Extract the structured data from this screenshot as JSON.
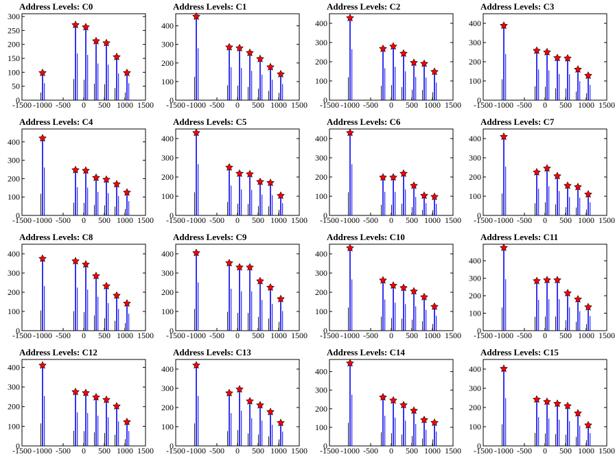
{
  "chart_data": [
    {
      "type": "bar",
      "title": "Address Levels: C0",
      "xlim": [
        -1500,
        1500
      ],
      "ylim": [
        0,
        310
      ],
      "yticks": [
        0,
        50,
        100,
        150,
        200,
        250,
        300
      ],
      "xticks": [
        -1500,
        -1000,
        -500,
        0,
        500,
        1000,
        1500
      ],
      "x": [
        -1000,
        -200,
        50,
        300,
        550,
        800,
        1050
      ],
      "values": [
        98,
        270,
        262,
        212,
        205,
        155,
        98
      ]
    },
    {
      "type": "bar",
      "title": "Address Levels: C1",
      "xlim": [
        -1500,
        1500
      ],
      "ylim": [
        0,
        465
      ],
      "yticks": [
        0,
        100,
        200,
        300,
        400
      ],
      "xticks": [
        -1500,
        -1000,
        -500,
        0,
        500,
        1000,
        1500
      ],
      "x": [
        -1000,
        -200,
        50,
        300,
        550,
        800,
        1050
      ],
      "values": [
        450,
        285,
        280,
        255,
        222,
        178,
        140
      ]
    },
    {
      "type": "bar",
      "title": "Address Levels: C2",
      "xlim": [
        -1500,
        1500
      ],
      "ylim": [
        0,
        450
      ],
      "yticks": [
        0,
        100,
        200,
        300,
        400
      ],
      "xticks": [
        -1500,
        -1000,
        -500,
        0,
        500,
        1000,
        1500
      ],
      "x": [
        -1000,
        -200,
        50,
        300,
        550,
        800,
        1050
      ],
      "values": [
        428,
        268,
        280,
        243,
        195,
        190,
        148
      ]
    },
    {
      "type": "bar",
      "title": "Address Levels: C3",
      "xlim": [
        -1500,
        1500
      ],
      "ylim": [
        0,
        450
      ],
      "yticks": [
        0,
        100,
        200,
        300,
        400
      ],
      "xticks": [
        -1500,
        -1000,
        -500,
        0,
        500,
        1000,
        1500
      ],
      "x": [
        -1000,
        -200,
        50,
        300,
        550,
        800,
        1050
      ],
      "values": [
        388,
        258,
        250,
        220,
        218,
        160,
        128
      ]
    },
    {
      "type": "bar",
      "title": "Address Levels: C4",
      "xlim": [
        -1500,
        1500
      ],
      "ylim": [
        0,
        470
      ],
      "yticks": [
        0,
        100,
        200,
        300,
        400
      ],
      "xticks": [
        -1500,
        -1000,
        -500,
        0,
        500,
        1000,
        1500
      ],
      "x": [
        -1000,
        -200,
        50,
        300,
        550,
        800,
        1050
      ],
      "values": [
        420,
        247,
        244,
        205,
        195,
        170,
        125
      ]
    },
    {
      "type": "bar",
      "title": "Address Levels: C5",
      "xlim": [
        -1500,
        1500
      ],
      "ylim": [
        0,
        450
      ],
      "yticks": [
        0,
        100,
        200,
        300,
        400
      ],
      "xticks": [
        -1500,
        -1000,
        -500,
        0,
        500,
        1000,
        1500
      ],
      "x": [
        -1000,
        -200,
        50,
        300,
        550,
        800,
        1050
      ],
      "values": [
        430,
        250,
        218,
        215,
        175,
        170,
        103
      ]
    },
    {
      "type": "bar",
      "title": "Address Levels: C6",
      "xlim": [
        -1500,
        1500
      ],
      "ylim": [
        0,
        450
      ],
      "yticks": [
        0,
        100,
        200,
        300,
        400
      ],
      "xticks": [
        -1500,
        -1000,
        -500,
        0,
        500,
        1000,
        1500
      ],
      "x": [
        -1000,
        -200,
        50,
        300,
        550,
        800,
        1050
      ],
      "values": [
        430,
        198,
        198,
        218,
        155,
        103,
        97
      ]
    },
    {
      "type": "bar",
      "title": "Address Levels: C7",
      "xlim": [
        -1500,
        1500
      ],
      "ylim": [
        0,
        450
      ],
      "yticks": [
        0,
        100,
        200,
        300,
        400
      ],
      "xticks": [
        -1500,
        -1000,
        -500,
        0,
        500,
        1000,
        1500
      ],
      "x": [
        -1000,
        -200,
        50,
        300,
        550,
        800,
        1050
      ],
      "values": [
        410,
        225,
        245,
        205,
        155,
        148,
        110
      ]
    },
    {
      "type": "bar",
      "title": "Address Levels: C8",
      "xlim": [
        -1500,
        1500
      ],
      "ylim": [
        0,
        450
      ],
      "yticks": [
        0,
        100,
        200,
        300,
        400
      ],
      "xticks": [
        -1500,
        -1000,
        -500,
        0,
        500,
        1000,
        1500
      ],
      "x": [
        -1000,
        -200,
        50,
        300,
        550,
        800,
        1050
      ],
      "values": [
        375,
        362,
        345,
        285,
        232,
        183,
        142
      ]
    },
    {
      "type": "bar",
      "title": "Address Levels: C9",
      "xlim": [
        -1500,
        1500
      ],
      "ylim": [
        0,
        450
      ],
      "yticks": [
        0,
        100,
        200,
        300,
        400
      ],
      "xticks": [
        -1500,
        -1000,
        -500,
        0,
        500,
        1000,
        1500
      ],
      "x": [
        -1000,
        -200,
        50,
        300,
        550,
        800,
        1050
      ],
      "values": [
        405,
        352,
        330,
        330,
        258,
        225,
        165
      ]
    },
    {
      "type": "bar",
      "title": "Address Levels: C10",
      "xlim": [
        -1500,
        1500
      ],
      "ylim": [
        0,
        450
      ],
      "yticks": [
        0,
        100,
        200,
        300,
        400
      ],
      "xticks": [
        -1500,
        -1000,
        -500,
        0,
        500,
        1000,
        1500
      ],
      "x": [
        -1000,
        -200,
        50,
        300,
        550,
        800,
        1050
      ],
      "values": [
        430,
        262,
        235,
        223,
        205,
        175,
        125
      ]
    },
    {
      "type": "bar",
      "title": "Address Levels: C11",
      "xlim": [
        -1500,
        1500
      ],
      "ylim": [
        0,
        495
      ],
      "yticks": [
        0,
        100,
        200,
        300,
        400
      ],
      "xticks": [
        -1500,
        -1000,
        -500,
        0,
        500,
        1000,
        1500
      ],
      "x": [
        -1000,
        -200,
        50,
        300,
        550,
        800,
        1050
      ],
      "values": [
        475,
        285,
        290,
        290,
        215,
        180,
        135
      ]
    },
    {
      "type": "bar",
      "title": "Address Levels: C12",
      "xlim": [
        -1500,
        1500
      ],
      "ylim": [
        0,
        440
      ],
      "yticks": [
        0,
        100,
        200,
        300,
        400
      ],
      "xticks": [
        -1500,
        -1000,
        -500,
        0,
        500,
        1000,
        1500
      ],
      "x": [
        -1000,
        -200,
        50,
        300,
        550,
        800,
        1050
      ],
      "values": [
        410,
        275,
        270,
        248,
        235,
        202,
        122
      ]
    },
    {
      "type": "bar",
      "title": "Address Levels: C13",
      "xlim": [
        -1500,
        1500
      ],
      "ylim": [
        0,
        450
      ],
      "yticks": [
        0,
        100,
        200,
        300,
        400
      ],
      "xticks": [
        -1500,
        -1000,
        -500,
        0,
        500,
        1000,
        1500
      ],
      "x": [
        -1000,
        -200,
        50,
        300,
        550,
        800,
        1050
      ],
      "values": [
        420,
        275,
        295,
        233,
        212,
        177,
        120
      ]
    },
    {
      "type": "bar",
      "title": "Address Levels: C14",
      "xlim": [
        -1500,
        1500
      ],
      "ylim": [
        0,
        465
      ],
      "yticks": [
        0,
        100,
        200,
        300,
        400
      ],
      "xticks": [
        -1500,
        -1000,
        -500,
        0,
        500,
        1000,
        1500
      ],
      "x": [
        -1000,
        -200,
        50,
        300,
        550,
        800,
        1050
      ],
      "values": [
        445,
        262,
        245,
        220,
        190,
        140,
        125
      ]
    },
    {
      "type": "bar",
      "title": "Address Levels: C15",
      "xlim": [
        -1500,
        1500
      ],
      "ylim": [
        0,
        450
      ],
      "yticks": [
        0,
        100,
        200,
        300,
        400
      ],
      "xticks": [
        -1500,
        -1000,
        -500,
        0,
        500,
        1000,
        1500
      ],
      "x": [
        -1000,
        -200,
        50,
        300,
        550,
        800,
        1050
      ],
      "values": [
        402,
        242,
        230,
        220,
        208,
        170,
        108
      ]
    }
  ],
  "colors": {
    "bar": "#0000ee",
    "marker": "#ff0000",
    "axis": "#000000"
  }
}
